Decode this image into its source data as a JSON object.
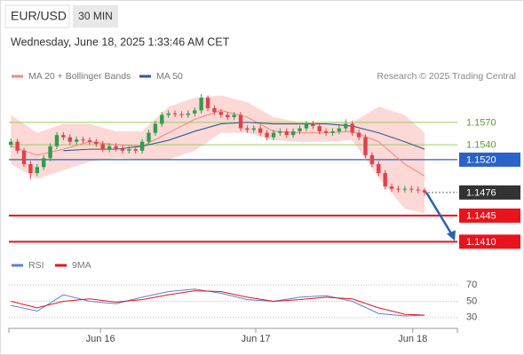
{
  "chart_data": [
    {
      "type": "candlestick",
      "title": "EUR/USD",
      "timeframe": "30 MIN",
      "subtitle": "Wednesday, June 18, 2025 1:33:46 AM CET",
      "source": "Research © 2025 Trading Central",
      "xlim": [
        -0.3,
        68
      ],
      "ylim": [
        1.1389,
        1.1621
      ],
      "up_color": "#2e9e4f",
      "down_color": "#e0424a",
      "open": [
        1.154,
        1.1544,
        1.1532,
        1.1514,
        1.1502,
        1.151,
        1.1522,
        1.1538,
        1.1553,
        1.155,
        1.1544,
        1.1547,
        1.1546,
        1.1544,
        1.1541,
        1.1534,
        1.1538,
        1.1535,
        1.1532,
        1.1534,
        1.1532,
        1.1544,
        1.1556,
        1.1568,
        1.158,
        1.1582,
        1.1581,
        1.158,
        1.1582,
        1.1586,
        1.1603,
        1.1589,
        1.1584,
        1.158,
        1.1577,
        1.158,
        1.1562,
        1.156,
        1.1562,
        1.1556,
        1.155,
        1.1556,
        1.1558,
        1.1553,
        1.1558,
        1.1562,
        1.1568,
        1.1565,
        1.1558,
        1.1556,
        1.1558,
        1.1562,
        1.1568,
        1.1556,
        1.155,
        1.1526,
        1.1514,
        1.1502,
        1.1484,
        1.1481,
        1.148,
        1.1481,
        1.148,
        1.1479
      ],
      "high": [
        1.1548,
        1.1548,
        1.1536,
        1.1518,
        1.1514,
        1.1526,
        1.1542,
        1.1557,
        1.1557,
        1.1554,
        1.1551,
        1.1551,
        1.155,
        1.1548,
        1.1545,
        1.1542,
        1.1542,
        1.1539,
        1.1538,
        1.1538,
        1.1548,
        1.156,
        1.1572,
        1.1584,
        1.1586,
        1.1586,
        1.1585,
        1.1586,
        1.159,
        1.1608,
        1.1606,
        1.1593,
        1.1588,
        1.1584,
        1.1584,
        1.1584,
        1.1566,
        1.1566,
        1.1566,
        1.156,
        1.156,
        1.1562,
        1.1562,
        1.1562,
        1.1566,
        1.1572,
        1.1572,
        1.1569,
        1.1562,
        1.1562,
        1.1566,
        1.1574,
        1.1572,
        1.156,
        1.1554,
        1.153,
        1.1518,
        1.1506,
        1.1488,
        1.1485,
        1.1485,
        1.1485,
        1.1484,
        1.1482
      ],
      "low": [
        1.1536,
        1.1528,
        1.151,
        1.1494,
        1.1498,
        1.1506,
        1.1518,
        1.1534,
        1.1546,
        1.154,
        1.154,
        1.1542,
        1.154,
        1.1537,
        1.153,
        1.153,
        1.1531,
        1.1528,
        1.1528,
        1.1528,
        1.1528,
        1.154,
        1.1552,
        1.1564,
        1.1576,
        1.1577,
        1.1576,
        1.1576,
        1.1578,
        1.1582,
        1.1585,
        1.158,
        1.1576,
        1.1573,
        1.1573,
        1.1558,
        1.1556,
        1.1556,
        1.1552,
        1.1546,
        1.1546,
        1.1552,
        1.1549,
        1.1549,
        1.1554,
        1.1558,
        1.1561,
        1.1554,
        1.1552,
        1.1552,
        1.1554,
        1.1558,
        1.1552,
        1.1546,
        1.1522,
        1.151,
        1.1498,
        1.148,
        1.1477,
        1.1476,
        1.1476,
        1.1476,
        1.1475,
        1.1472
      ],
      "close": [
        1.1544,
        1.1532,
        1.1514,
        1.1502,
        1.151,
        1.1522,
        1.1538,
        1.1553,
        1.155,
        1.1544,
        1.1547,
        1.1546,
        1.1544,
        1.1541,
        1.1534,
        1.1538,
        1.1535,
        1.1532,
        1.1534,
        1.1532,
        1.1544,
        1.1556,
        1.1568,
        1.158,
        1.1582,
        1.1581,
        1.158,
        1.1582,
        1.1586,
        1.1603,
        1.1589,
        1.1584,
        1.158,
        1.1577,
        1.158,
        1.1562,
        1.156,
        1.1562,
        1.1556,
        1.155,
        1.1556,
        1.1558,
        1.1553,
        1.1558,
        1.1562,
        1.1568,
        1.1565,
        1.1558,
        1.1556,
        1.1558,
        1.1562,
        1.1568,
        1.1556,
        1.155,
        1.1526,
        1.1514,
        1.1502,
        1.1484,
        1.1481,
        1.148,
        1.1481,
        1.148,
        1.1479,
        1.1476
      ],
      "overlays": [
        {
          "name": "MA 20 + Bollinger Bands",
          "color": "#f28b82",
          "band_color": "#fcd9d6",
          "x": [
            0,
            4,
            8,
            12,
            16,
            20,
            24,
            28,
            32,
            36,
            40,
            44,
            48,
            52,
            56,
            60,
            63
          ],
          "values": [
            1.1538,
            1.1526,
            1.1534,
            1.1544,
            1.154,
            1.1538,
            1.1556,
            1.1574,
            1.1586,
            1.1577,
            1.1558,
            1.1556,
            1.1556,
            1.1558,
            1.1544,
            1.1514,
            1.1498
          ],
          "upper": [
            1.158,
            1.1556,
            1.1568,
            1.1568,
            1.1558,
            1.1558,
            1.1591,
            1.1603,
            1.1606,
            1.1597,
            1.1577,
            1.157,
            1.157,
            1.157,
            1.1591,
            1.158,
            1.1556
          ],
          "lower": [
            1.1514,
            1.1494,
            1.1506,
            1.1517,
            1.1522,
            1.152,
            1.152,
            1.1532,
            1.1556,
            1.1556,
            1.1546,
            1.1544,
            1.1544,
            1.1546,
            1.1496,
            1.1454,
            1.1448
          ]
        },
        {
          "name": "MA 50",
          "color": "#2e5a9c",
          "x": [
            8,
            12,
            16,
            20,
            24,
            28,
            32,
            36,
            40,
            44,
            48,
            52,
            56,
            60,
            63
          ],
          "values": [
            1.1532,
            1.1534,
            1.1534,
            1.1538,
            1.1546,
            1.1558,
            1.1568,
            1.157,
            1.1568,
            1.1568,
            1.1568,
            1.1565,
            1.1556,
            1.1544,
            1.1534
          ]
        }
      ],
      "levels": [
        {
          "price": {
            "value": 1.157,
            "label": "1.1570"
          },
          "style": "thin",
          "color": "#9acd5a",
          "label_color": "#5aa02c"
        },
        {
          "price": {
            "value": 1.154,
            "label": "1.1540"
          },
          "style": "thin",
          "color": "#9acd5a",
          "label_color": "#5aa02c"
        },
        {
          "price": {
            "value": 1.152,
            "label": "1.1520"
          },
          "style": "box",
          "color": "#2962c8",
          "label_color": "#ffffff"
        },
        {
          "price": 1.1476,
          "style": "current",
          "color": "#333333",
          "label_color": "#ffffff"
        },
        {
          "price": 1.1445,
          "style": "box",
          "color": "#e8131c",
          "label_color": "#ffffff"
        },
        {
          "price": {
            "value": 1.141,
            "label": "1.1410"
          },
          "style": "box",
          "color": "#e8131c",
          "label_color": "#ffffff"
        }
      ]
    },
    {
      "type": "line",
      "xlim": [
        -0.3,
        68
      ],
      "xticks": [
        {
          "value": 13.65,
          "label": "Jun 16"
        },
        {
          "value": 37.3,
          "label": "Jun 17"
        },
        {
          "value": 61.2,
          "label": "Jun 18"
        }
      ],
      "ylim": [
        20,
        80
      ],
      "yticks": [
        30,
        50,
        70
      ],
      "series": [
        {
          "name": "RSI",
          "color": "#5b7fd6",
          "x": [
            0,
            4,
            8,
            12,
            16,
            20,
            24,
            28,
            32,
            36,
            40,
            44,
            48,
            52,
            56,
            60,
            63
          ],
          "values": [
            45,
            38,
            58,
            50,
            47,
            55,
            62,
            65,
            60,
            52,
            50,
            55,
            57,
            50,
            35,
            32,
            33
          ]
        },
        {
          "name": "9MA",
          "color": "#e8131c",
          "x": [
            0,
            4,
            8,
            12,
            16,
            20,
            24,
            28,
            32,
            36,
            40,
            44,
            48,
            52,
            56,
            60,
            63
          ],
          "values": [
            50,
            42,
            50,
            53,
            49,
            52,
            58,
            63,
            62,
            55,
            50,
            52,
            55,
            53,
            42,
            34,
            33
          ]
        }
      ]
    }
  ]
}
